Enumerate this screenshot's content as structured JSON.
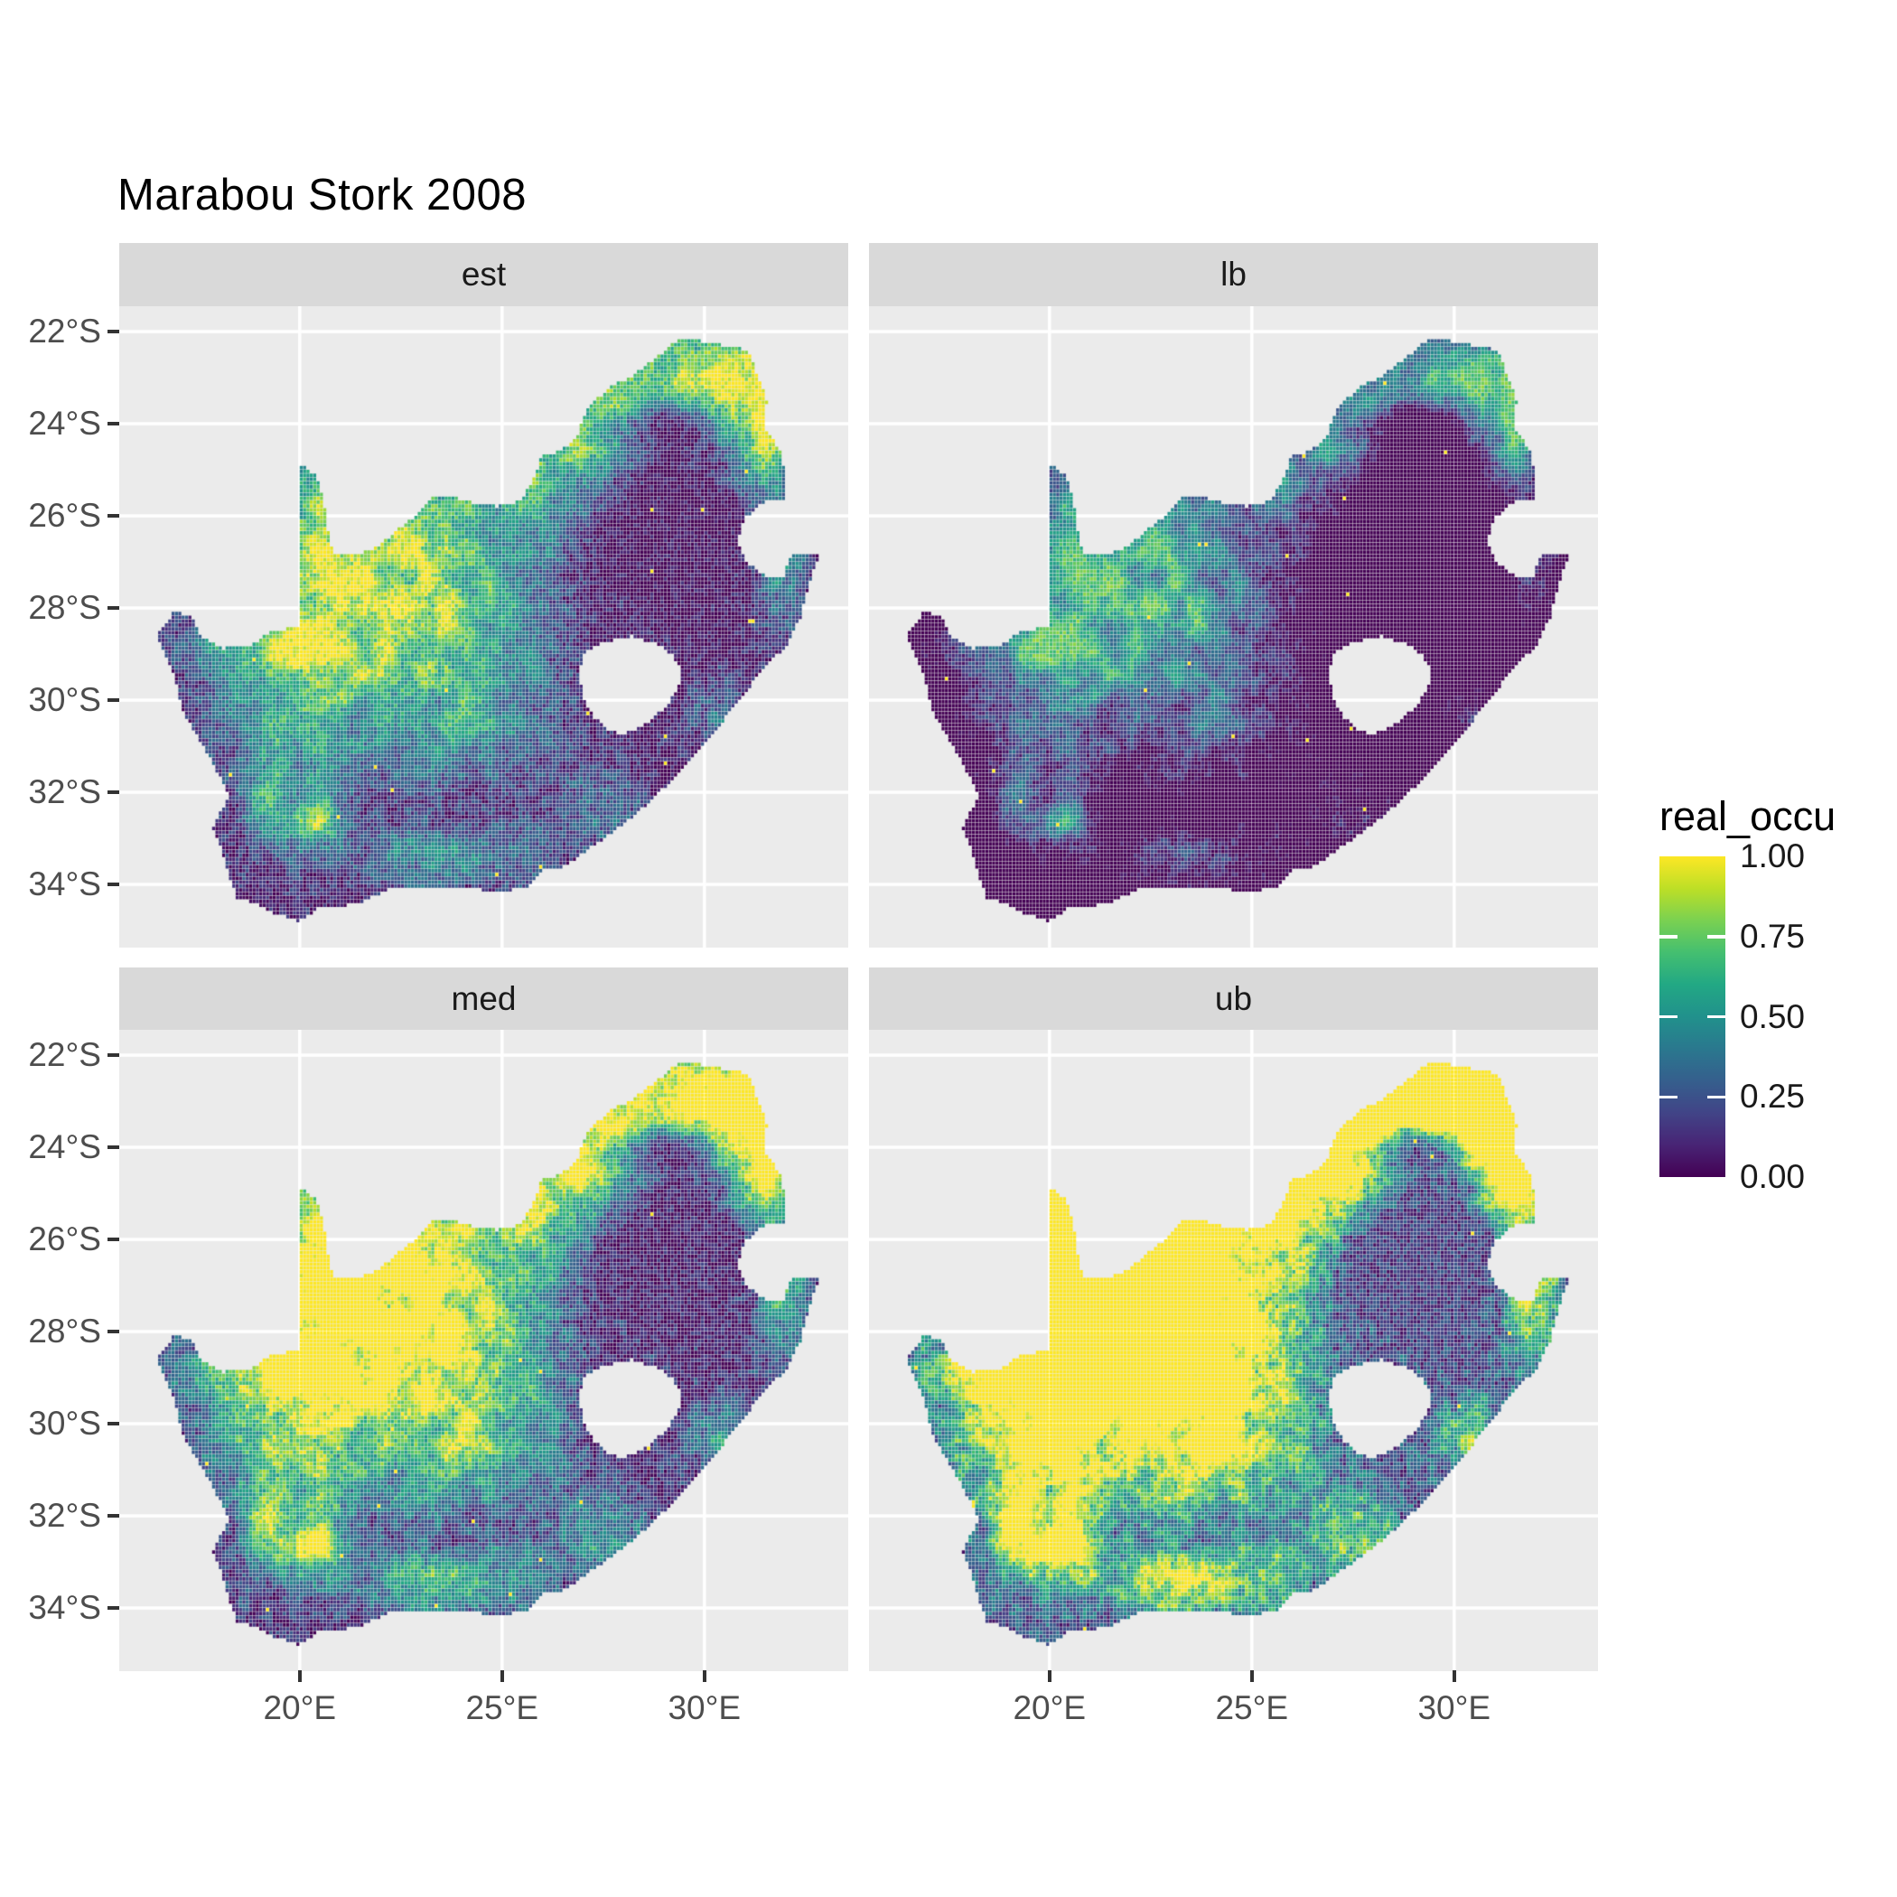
{
  "title": "Marabou Stork 2008",
  "facets": [
    {
      "label": "est"
    },
    {
      "label": "lb"
    },
    {
      "label": "med"
    },
    {
      "label": "ub"
    }
  ],
  "x_axis": {
    "tick_labels": [
      "20°E",
      "25°E",
      "30°E"
    ],
    "tick_lons": [
      20,
      25,
      30
    ]
  },
  "y_axis": {
    "tick_labels": [
      "22°S",
      "24°S",
      "26°S",
      "28°S",
      "30°S",
      "32°S",
      "34°S"
    ],
    "tick_lats": [
      -22,
      -24,
      -26,
      -28,
      -30,
      -32,
      -34
    ]
  },
  "legend": {
    "title": "real_occu",
    "tick_labels": [
      "1.00",
      "0.75",
      "0.50",
      "0.25",
      "0.00"
    ],
    "tick_values": [
      1.0,
      0.75,
      0.5,
      0.25,
      0.0
    ]
  },
  "colors": {
    "panel_bg": "#EBEBEB",
    "strip_bg": "#D9D9D9",
    "grid": "#FFFFFF",
    "axis_text": "#4D4D4D",
    "tick_mark": "#333333",
    "strip_text": "#1A1A1A",
    "title_text": "#000000",
    "legend_text": "#1A1A1A"
  },
  "chart_data": {
    "type": "heatmap",
    "title": "Marabou Stork 2008",
    "facet_labels": [
      "est",
      "lb",
      "med",
      "ub"
    ],
    "legend_title": "real_occu",
    "value_range": [
      0,
      1
    ],
    "legend_breaks": [
      0,
      0.25,
      0.5,
      0.75,
      1.0
    ],
    "lon_range": [
      15.54,
      33.55
    ],
    "lat_range": [
      -35.37,
      -21.45
    ],
    "cell_deg": 0.08333,
    "grid_lons": [
      20,
      25,
      30
    ],
    "grid_lats": [
      -22,
      -24,
      -26,
      -28,
      -30,
      -32,
      -34
    ],
    "palette_viridis": [
      "#440154",
      "#482475",
      "#414487",
      "#355f8d",
      "#2a788e",
      "#21918c",
      "#22a884",
      "#44bf70",
      "#7ad151",
      "#bddf26",
      "#fde725"
    ],
    "south_africa_boundary": [
      [
        20.0,
        -24.85
      ],
      [
        20.38,
        -25.1
      ],
      [
        20.6,
        -25.62
      ],
      [
        20.68,
        -26.2
      ],
      [
        20.85,
        -26.85
      ],
      [
        21.45,
        -26.85
      ],
      [
        21.95,
        -26.66
      ],
      [
        22.55,
        -26.22
      ],
      [
        22.88,
        -25.98
      ],
      [
        23.25,
        -25.62
      ],
      [
        23.9,
        -25.62
      ],
      [
        24.45,
        -25.75
      ],
      [
        24.9,
        -25.8
      ],
      [
        25.45,
        -25.68
      ],
      [
        25.85,
        -25.1
      ],
      [
        25.95,
        -24.72
      ],
      [
        26.45,
        -24.6
      ],
      [
        26.85,
        -24.3
      ],
      [
        27.1,
        -23.7
      ],
      [
        27.6,
        -23.25
      ],
      [
        28.2,
        -22.97
      ],
      [
        28.85,
        -22.55
      ],
      [
        29.35,
        -22.18
      ],
      [
        29.9,
        -22.2
      ],
      [
        30.5,
        -22.3
      ],
      [
        31.1,
        -22.4
      ],
      [
        31.3,
        -22.9
      ],
      [
        31.55,
        -23.5
      ],
      [
        31.5,
        -24.1
      ],
      [
        31.9,
        -24.6
      ],
      [
        32.0,
        -25.12
      ],
      [
        32.03,
        -25.65
      ],
      [
        31.4,
        -25.72
      ],
      [
        30.97,
        -26.1
      ],
      [
        30.82,
        -26.55
      ],
      [
        31.05,
        -27.0
      ],
      [
        31.48,
        -27.3
      ],
      [
        31.97,
        -27.32
      ],
      [
        32.13,
        -26.86
      ],
      [
        32.86,
        -26.86
      ],
      [
        32.58,
        -27.5
      ],
      [
        32.38,
        -28.2
      ],
      [
        32.05,
        -28.8
      ],
      [
        31.4,
        -29.4
      ],
      [
        30.7,
        -30.2
      ],
      [
        30.0,
        -30.95
      ],
      [
        29.2,
        -31.75
      ],
      [
        28.3,
        -32.5
      ],
      [
        27.45,
        -33.05
      ],
      [
        26.6,
        -33.6
      ],
      [
        25.95,
        -33.72
      ],
      [
        25.63,
        -34.05
      ],
      [
        24.9,
        -34.2
      ],
      [
        24.08,
        -34.05
      ],
      [
        23.35,
        -34.1
      ],
      [
        22.2,
        -34.12
      ],
      [
        21.35,
        -34.45
      ],
      [
        20.55,
        -34.48
      ],
      [
        19.98,
        -34.82
      ],
      [
        19.35,
        -34.62
      ],
      [
        18.86,
        -34.4
      ],
      [
        18.46,
        -34.32
      ],
      [
        18.3,
        -33.95
      ],
      [
        18.1,
        -33.3
      ],
      [
        17.85,
        -32.78
      ],
      [
        18.26,
        -32.08
      ],
      [
        17.9,
        -31.45
      ],
      [
        17.15,
        -30.3
      ],
      [
        16.85,
        -29.35
      ],
      [
        16.47,
        -28.6
      ],
      [
        16.9,
        -28.08
      ],
      [
        17.38,
        -28.22
      ],
      [
        17.55,
        -28.6
      ],
      [
        18.1,
        -28.88
      ],
      [
        18.75,
        -28.84
      ],
      [
        19.3,
        -28.52
      ],
      [
        19.99,
        -28.4
      ]
    ],
    "lesotho_hole": [
      [
        27.0,
        -29.0
      ],
      [
        27.5,
        -28.75
      ],
      [
        28.2,
        -28.62
      ],
      [
        28.8,
        -28.78
      ],
      [
        29.2,
        -29.0
      ],
      [
        29.45,
        -29.4
      ],
      [
        29.3,
        -29.85
      ],
      [
        29.0,
        -30.2
      ],
      [
        28.5,
        -30.55
      ],
      [
        28.0,
        -30.75
      ],
      [
        27.55,
        -30.6
      ],
      [
        27.25,
        -30.35
      ],
      [
        27.0,
        -29.9
      ],
      [
        26.92,
        -29.45
      ]
    ],
    "field_blobs": [
      [
        20.9,
        -26.6,
        2.4,
        2.0,
        0.78
      ],
      [
        23.6,
        -28.6,
        2.0,
        1.5,
        0.5
      ],
      [
        25.8,
        -25.6,
        1.3,
        0.9,
        0.45
      ],
      [
        29.4,
        -23.15,
        2.3,
        1.0,
        0.9
      ],
      [
        31.7,
        -23.8,
        0.75,
        1.5,
        0.75
      ],
      [
        27.35,
        -24.4,
        1.0,
        0.8,
        0.45
      ],
      [
        28.9,
        -24.0,
        1.05,
        0.5,
        -0.65
      ],
      [
        28.8,
        -26.1,
        1.8,
        1.0,
        -0.3
      ],
      [
        19.8,
        -30.3,
        1.4,
        1.6,
        0.45
      ],
      [
        20.35,
        -32.7,
        0.5,
        0.5,
        0.62
      ],
      [
        22.9,
        -33.5,
        1.0,
        0.5,
        0.42
      ],
      [
        25.1,
        -33.4,
        0.9,
        0.5,
        0.35
      ],
      [
        27.6,
        -32.4,
        0.9,
        0.7,
        0.28
      ],
      [
        30.4,
        -30.4,
        0.55,
        0.6,
        0.33
      ],
      [
        31.9,
        -27.2,
        0.5,
        1.0,
        0.4
      ],
      [
        18.7,
        -28.9,
        1.3,
        0.3,
        0.28
      ],
      [
        19.1,
        -32.4,
        0.35,
        0.7,
        0.3
      ],
      [
        24.0,
        -30.8,
        1.6,
        1.0,
        0.25
      ]
    ],
    "noise": {
      "patch_scale": 1.9,
      "patch_base": 0.72,
      "patch_amp": 0.56,
      "fine_scale": 5.5,
      "fine_amp": 0.24
    },
    "facet_transforms": [
      {
        "name": "est",
        "gain": 1.0,
        "offset": 0.02,
        "speckle": 0.26,
        "seed": 1
      },
      {
        "name": "lb",
        "gain": 1.05,
        "offset": -0.3,
        "speckle": 0.2,
        "seed": 2
      },
      {
        "name": "med",
        "gain": 1.32,
        "offset": 0.07,
        "speckle": 0.26,
        "seed": 3
      },
      {
        "name": "ub",
        "gain": 1.85,
        "offset": 0.17,
        "speckle": 0.28,
        "seed": 4
      }
    ],
    "outlier_rate": 0.0012
  }
}
